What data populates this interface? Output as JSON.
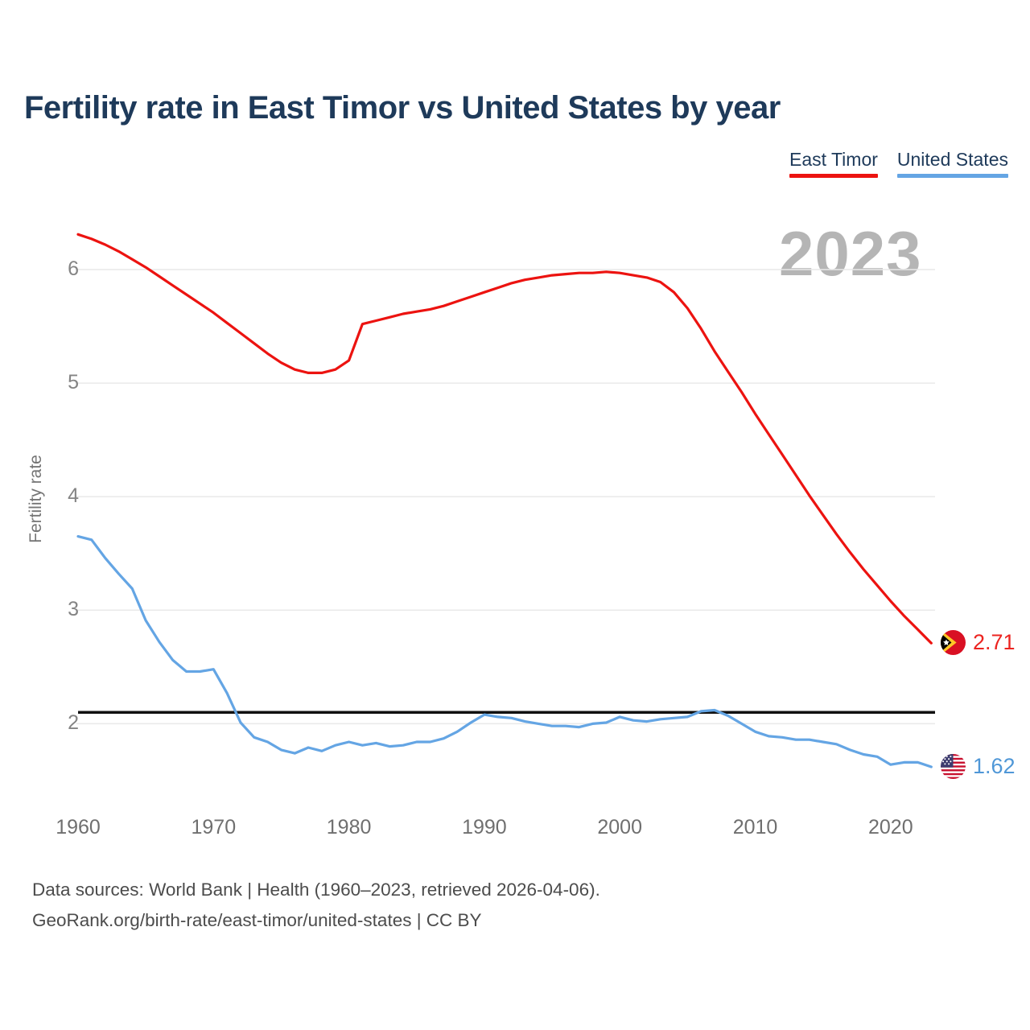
{
  "header": {
    "title": "Fertility rate in East Timor vs United States by year"
  },
  "legend": {
    "items": [
      {
        "label": "East Timor",
        "color": "#ec1310"
      },
      {
        "label": "United States",
        "color": "#64a5e4"
      }
    ]
  },
  "watermark": {
    "year": "2023"
  },
  "axes": {
    "y_title": "Fertility rate",
    "y_ticks": [
      2,
      3,
      4,
      5,
      6
    ],
    "x_ticks": [
      1960,
      1970,
      1980,
      1990,
      2000,
      2010,
      2020
    ],
    "grid_color": "#e9e9e9",
    "tick_color": "#848484"
  },
  "threshold": {
    "value": 2.1,
    "color": "#111111"
  },
  "chart_data": {
    "type": "line",
    "title": "Fertility rate in East Timor vs United States by year",
    "xlabel": "",
    "ylabel": "Fertility rate",
    "x_range": [
      1960,
      2023
    ],
    "ylim": [
      1.45,
      6.5
    ],
    "grid": "horizontal",
    "legend_position": "top-right",
    "x": [
      1960,
      1961,
      1962,
      1963,
      1964,
      1965,
      1966,
      1967,
      1968,
      1969,
      1970,
      1971,
      1972,
      1973,
      1974,
      1975,
      1976,
      1977,
      1978,
      1979,
      1980,
      1981,
      1982,
      1983,
      1984,
      1985,
      1986,
      1987,
      1988,
      1989,
      1990,
      1991,
      1992,
      1993,
      1994,
      1995,
      1996,
      1997,
      1998,
      1999,
      2000,
      2001,
      2002,
      2003,
      2004,
      2005,
      2006,
      2007,
      2008,
      2009,
      2010,
      2011,
      2012,
      2013,
      2014,
      2015,
      2016,
      2017,
      2018,
      2019,
      2020,
      2021,
      2022,
      2023
    ],
    "series": [
      {
        "name": "East Timor",
        "color": "#ec1310",
        "end_value": 2.71,
        "values": [
          6.31,
          6.27,
          6.22,
          6.16,
          6.09,
          6.02,
          5.94,
          5.86,
          5.78,
          5.7,
          5.62,
          5.53,
          5.44,
          5.35,
          5.26,
          5.18,
          5.12,
          5.09,
          5.09,
          5.12,
          5.2,
          5.52,
          5.55,
          5.58,
          5.61,
          5.63,
          5.65,
          5.68,
          5.72,
          5.76,
          5.8,
          5.84,
          5.88,
          5.91,
          5.93,
          5.95,
          5.96,
          5.97,
          5.97,
          5.98,
          5.97,
          5.95,
          5.93,
          5.89,
          5.8,
          5.66,
          5.48,
          5.28,
          5.1,
          4.92,
          4.73,
          4.55,
          4.37,
          4.19,
          4.01,
          3.84,
          3.67,
          3.51,
          3.36,
          3.22,
          3.08,
          2.95,
          2.83,
          2.71
        ]
      },
      {
        "name": "United States",
        "color": "#64a5e4",
        "end_value": 1.62,
        "values": [
          3.65,
          3.62,
          3.46,
          3.32,
          3.19,
          2.91,
          2.72,
          2.56,
          2.46,
          2.46,
          2.48,
          2.27,
          2.01,
          1.88,
          1.84,
          1.77,
          1.74,
          1.79,
          1.76,
          1.81,
          1.84,
          1.81,
          1.83,
          1.8,
          1.81,
          1.84,
          1.84,
          1.87,
          1.93,
          2.01,
          2.08,
          2.06,
          2.05,
          2.02,
          2.0,
          1.98,
          1.98,
          1.97,
          2.0,
          2.01,
          2.06,
          2.03,
          2.02,
          2.04,
          2.05,
          2.06,
          2.11,
          2.12,
          2.07,
          2.0,
          1.93,
          1.89,
          1.88,
          1.86,
          1.86,
          1.84,
          1.82,
          1.77,
          1.73,
          1.71,
          1.64,
          1.66,
          1.66,
          1.62
        ]
      }
    ]
  },
  "end_labels": [
    {
      "series": "East Timor",
      "value_label": "2.71",
      "value": 2.71,
      "color": "#ec2420"
    },
    {
      "series": "United States",
      "value_label": "1.62",
      "value": 1.62,
      "color": "#4f97d7"
    }
  ],
  "footer": {
    "line1": "Data sources: World Bank | Health (1960–2023, retrieved 2026-04-06).",
    "line2": "GeoRank.org/birth-rate/east-timor/united-states | CC BY"
  }
}
